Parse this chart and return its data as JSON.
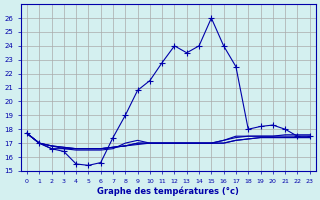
{
  "xlabel": "Graphe des températures (°c)",
  "background_color": "#d4f0f0",
  "line_color": "#0000aa",
  "grid_color": "#aaaaaa",
  "hours": [
    0,
    1,
    2,
    3,
    4,
    5,
    6,
    7,
    8,
    9,
    10,
    11,
    12,
    13,
    14,
    15,
    16,
    17,
    18,
    19,
    20,
    21,
    22,
    23
  ],
  "series1": [
    17.7,
    17.0,
    16.6,
    16.4,
    15.5,
    15.4,
    15.6,
    17.4,
    19.0,
    20.8,
    21.5,
    22.8,
    24.0,
    23.5,
    24.0,
    26.0,
    24.0,
    22.5,
    18.0,
    18.2,
    18.3,
    18.0,
    17.5,
    17.5
  ],
  "series2": [
    17.7,
    17.0,
    16.6,
    16.6,
    16.5,
    16.5,
    16.5,
    16.6,
    17.0,
    17.2,
    17.0,
    17.0,
    17.0,
    17.0,
    17.0,
    17.0,
    17.2,
    17.5,
    17.5,
    17.5,
    17.5,
    17.5,
    17.5,
    17.5
  ],
  "series3": [
    17.7,
    17.0,
    16.8,
    16.6,
    16.6,
    16.6,
    16.6,
    16.7,
    16.8,
    16.9,
    17.0,
    17.0,
    17.0,
    17.0,
    17.0,
    17.0,
    17.0,
    17.2,
    17.3,
    17.4,
    17.4,
    17.4,
    17.4,
    17.4
  ],
  "series4": [
    17.7,
    17.0,
    16.8,
    16.7,
    16.6,
    16.6,
    16.6,
    16.7,
    16.8,
    17.0,
    17.0,
    17.0,
    17.0,
    17.0,
    17.0,
    17.0,
    17.0,
    17.2,
    17.3,
    17.4,
    17.4,
    17.4,
    17.4,
    17.4
  ],
  "series5": [
    17.7,
    17.0,
    16.8,
    16.7,
    16.6,
    16.6,
    16.6,
    16.7,
    16.8,
    17.0,
    17.0,
    17.0,
    17.0,
    17.0,
    17.0,
    17.0,
    17.2,
    17.4,
    17.5,
    17.5,
    17.5,
    17.6,
    17.6,
    17.6
  ],
  "ylim": [
    15,
    27
  ],
  "xlim": [
    -0.5,
    23.5
  ],
  "yticks": [
    15,
    16,
    17,
    18,
    19,
    20,
    21,
    22,
    23,
    24,
    25,
    26
  ],
  "xticks": [
    0,
    1,
    2,
    3,
    4,
    5,
    6,
    7,
    8,
    9,
    10,
    11,
    12,
    13,
    14,
    15,
    16,
    17,
    18,
    19,
    20,
    21,
    22,
    23
  ]
}
